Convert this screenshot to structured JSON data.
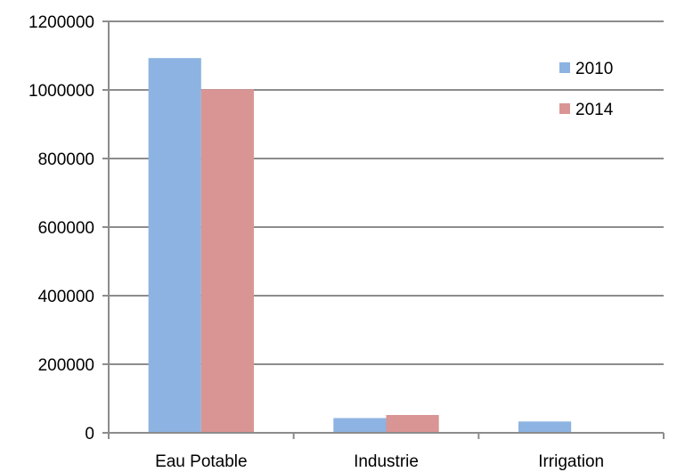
{
  "chart_data": {
    "type": "bar",
    "categories": [
      "Eau Potable",
      "Industrie",
      "Irrigation"
    ],
    "series": [
      {
        "name": "2010",
        "values": [
          1093000,
          43000,
          33000
        ],
        "color": "#8db3e2"
      },
      {
        "name": "2014",
        "values": [
          1002000,
          52000,
          0
        ],
        "color": "#d99594"
      }
    ],
    "title": "",
    "xlabel": "",
    "ylabel": "",
    "ylim": [
      0,
      1200000
    ],
    "yticks": [
      0,
      200000,
      400000,
      600000,
      800000,
      1000000,
      1200000
    ],
    "grid": true,
    "legend_position": "top-right"
  }
}
